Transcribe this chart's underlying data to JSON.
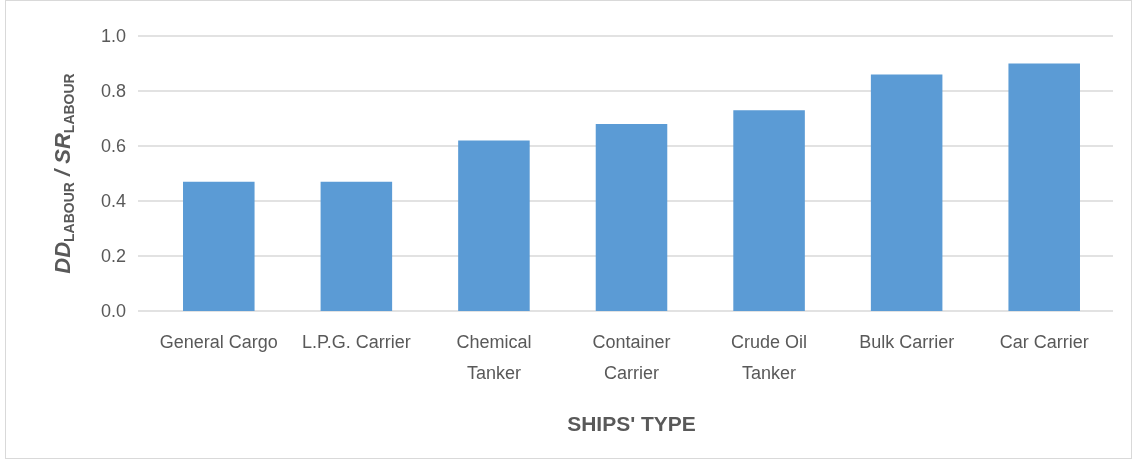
{
  "chart_data": {
    "type": "bar",
    "xlabel": "SHIPS' TYPE",
    "ylabel": "DD$_{LABOUR}$ / SR$_{LABOUR}$",
    "categories": [
      "General Cargo",
      "L.P.G. Carrier",
      "Chemical Tanker",
      "Container Carrier",
      "Crude Oil Tanker",
      "Bulk Carrier",
      "Car Carrier"
    ],
    "values": [
      0.47,
      0.47,
      0.62,
      0.68,
      0.73,
      0.86,
      0.9
    ],
    "color": "#5b9bd5",
    "ylim": [
      0,
      1
    ],
    "yticks": [
      {
        "value": 0,
        "label": "0.0"
      },
      {
        "value": 0.2,
        "label": "0.2"
      },
      {
        "value": 0.4,
        "label": "0.4"
      },
      {
        "value": 0.6,
        "label": "0.6"
      },
      {
        "value": 0.8,
        "label": "0.8"
      },
      {
        "value": 1,
        "label": "1.0"
      }
    ],
    "grid": "y"
  }
}
